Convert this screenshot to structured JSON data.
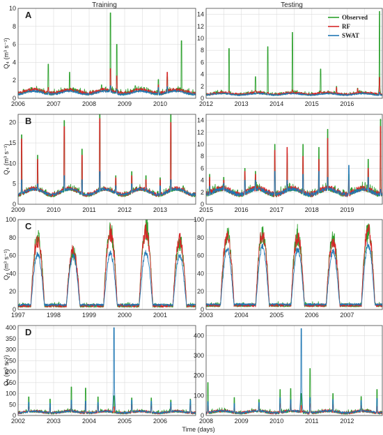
{
  "figure": {
    "column_titles": [
      "Training",
      "Testing"
    ],
    "xlabel": "Time (days)",
    "ylabel": "Q₄ (m³ s⁻¹)",
    "legend": [
      {
        "name": "Observed",
        "color": "#2ca02c"
      },
      {
        "name": "RF",
        "color": "#d62728"
      },
      {
        "name": "SWAT",
        "color": "#1f77b4"
      }
    ]
  },
  "chart_data": [
    {
      "panel": "A",
      "type": "line",
      "column": "Training",
      "x_range": [
        2006,
        2011
      ],
      "ylim": [
        0,
        10
      ],
      "yticks": [
        0,
        2,
        4,
        6,
        8,
        10
      ],
      "xticks": [
        2006,
        2007,
        2008,
        2009,
        2010
      ],
      "baseline": 0.35,
      "swat_base": 0.3,
      "seasonal": 0.4,
      "period": 1,
      "noise": 0.35,
      "seed": 11,
      "peaks": [
        [
          2006.15,
          1.0,
          0.6,
          0.6
        ],
        [
          2006.85,
          3.8,
          1.2,
          0.7
        ],
        [
          2007.45,
          2.9,
          0.9,
          0.6
        ],
        [
          2008.35,
          1.5,
          1.0,
          0.5
        ],
        [
          2008.6,
          9.5,
          3.3,
          1.4
        ],
        [
          2008.78,
          6.0,
          2.5,
          1.0
        ],
        [
          2009.3,
          1.4,
          1.0,
          0.6
        ],
        [
          2009.55,
          1.2,
          0.8,
          0.6
        ],
        [
          2009.95,
          2.1,
          1.5,
          1.2
        ],
        [
          2010.2,
          2.4,
          2.9,
          1.3
        ],
        [
          2010.6,
          6.4,
          1.0,
          0.7
        ]
      ]
    },
    {
      "panel": "A",
      "type": "line",
      "column": "Testing",
      "x_range": [
        2012,
        2017
      ],
      "ylim": [
        0,
        15
      ],
      "yticks": [
        0,
        2,
        4,
        6,
        8,
        10,
        12,
        14
      ],
      "xticks": [
        2012,
        2013,
        2014,
        2015,
        2016
      ],
      "baseline": 0.45,
      "swat_base": 0.4,
      "seasonal": 0.3,
      "period": 1,
      "noise": 0.35,
      "seed": 23,
      "peaks": [
        [
          2012.65,
          8.3,
          1.2,
          0.6
        ],
        [
          2013.4,
          3.6,
          1.3,
          0.6
        ],
        [
          2013.75,
          8.6,
          1.0,
          0.7
        ],
        [
          2014.45,
          11.0,
          1.4,
          0.8
        ],
        [
          2015.25,
          4.9,
          1.2,
          0.6
        ],
        [
          2015.7,
          2.0,
          1.8,
          0.7
        ],
        [
          2016.3,
          1.7,
          1.6,
          0.7
        ],
        [
          2016.92,
          14.5,
          3.5,
          1.0
        ]
      ]
    },
    {
      "panel": "B",
      "type": "line",
      "column": "Training",
      "x_range": [
        2009,
        2014
      ],
      "ylim": [
        0,
        22
      ],
      "yticks": [
        0,
        5,
        10,
        15,
        20
      ],
      "xticks": [
        2009,
        2010,
        2011,
        2012,
        2013
      ],
      "baseline": 1.8,
      "swat_base": 2.0,
      "seasonal": 1.5,
      "period": 1,
      "noise": 0.9,
      "seed": 37,
      "peaks": [
        [
          2009.1,
          17.0,
          16.0,
          6.0
        ],
        [
          2009.55,
          12.0,
          11.0,
          5.0
        ],
        [
          2010.3,
          20.5,
          19.0,
          7.0
        ],
        [
          2010.8,
          13.5,
          12.0,
          6.0
        ],
        [
          2011.3,
          22.0,
          21.0,
          8.0
        ],
        [
          2011.75,
          7.0,
          6.5,
          4.5
        ],
        [
          2012.2,
          8.0,
          7.0,
          5.0
        ],
        [
          2012.6,
          7.0,
          6.0,
          4.0
        ],
        [
          2013.0,
          6.5,
          6.0,
          4.5
        ],
        [
          2013.3,
          22.0,
          20.0,
          6.0
        ],
        [
          2013.65,
          4.5,
          4.0,
          3.5
        ]
      ]
    },
    {
      "panel": "B",
      "type": "line",
      "column": "Testing",
      "x_range": [
        2015,
        2020
      ],
      "ylim": [
        0,
        15
      ],
      "yticks": [
        0,
        2,
        4,
        6,
        8,
        10,
        12,
        14
      ],
      "xticks": [
        2015,
        2016,
        2017,
        2018,
        2019
      ],
      "baseline": 1.2,
      "swat_base": 1.3,
      "seasonal": 1.0,
      "period": 1,
      "noise": 0.8,
      "seed": 51,
      "peaks": [
        [
          2015.1,
          5.0,
          4.5,
          3.0
        ],
        [
          2015.5,
          4.5,
          4.0,
          3.5
        ],
        [
          2016.1,
          6.0,
          5.5,
          4.0
        ],
        [
          2016.4,
          5.5,
          5.0,
          4.0
        ],
        [
          2016.95,
          10.0,
          9.0,
          5.5
        ],
        [
          2017.3,
          8.5,
          9.5,
          4.0
        ],
        [
          2017.75,
          10.0,
          8.0,
          5.0
        ],
        [
          2018.2,
          9.5,
          7.5,
          5.5
        ],
        [
          2018.45,
          12.5,
          11.0,
          4.5
        ],
        [
          2019.05,
          5.0,
          4.0,
          6.5
        ],
        [
          2019.6,
          7.5,
          6.0,
          4.5
        ],
        [
          2019.95,
          14.2,
          13.0,
          2.5
        ]
      ]
    },
    {
      "panel": "C",
      "type": "line",
      "column": "Training",
      "x_range": [
        1997,
        2002
      ],
      "ylim": [
        0,
        100
      ],
      "yticks": [
        0,
        20,
        40,
        60,
        80,
        100
      ],
      "xticks": [
        1997,
        1998,
        1999,
        2000,
        2001
      ],
      "baseline": 2.5,
      "swat_base": 4.0,
      "seasonal": 0,
      "period": 1,
      "noise": 3.0,
      "seed": 67,
      "seasons": [
        [
          1997.55,
          88,
          80,
          60
        ],
        [
          1998.55,
          68,
          68,
          58
        ],
        [
          1999.6,
          95,
          90,
          60
        ],
        [
          2000.6,
          98,
          92,
          62
        ],
        [
          2001.55,
          82,
          80,
          58
        ]
      ],
      "season_width": 0.12
    },
    {
      "panel": "C",
      "type": "line",
      "column": "Testing",
      "x_range": [
        2003,
        2008
      ],
      "ylim": [
        0,
        100
      ],
      "yticks": [
        0,
        20,
        40,
        60,
        80,
        100
      ],
      "xticks": [
        2003,
        2004,
        2005,
        2006,
        2007
      ],
      "baseline": 3.0,
      "swat_base": 4.5,
      "seasonal": 0,
      "period": 1,
      "noise": 3.0,
      "seed": 79,
      "seasons": [
        [
          2003.6,
          88,
          85,
          65
        ],
        [
          2004.6,
          92,
          88,
          68
        ],
        [
          2005.6,
          88,
          85,
          64
        ],
        [
          2006.6,
          85,
          80,
          62
        ],
        [
          2007.6,
          95,
          92,
          70
        ]
      ],
      "season_width": 0.12
    },
    {
      "panel": "D",
      "type": "line",
      "column": "Training",
      "x_range": [
        2002,
        2007
      ],
      "ylim": [
        0,
        410
      ],
      "yticks": [
        0,
        50,
        100,
        150,
        200,
        250,
        300,
        350,
        400
      ],
      "xticks": [
        2002,
        2003,
        2004,
        2005,
        2006
      ],
      "baseline": 6,
      "swat_base": 8,
      "seasonal": 8,
      "period": 1,
      "noise": 10,
      "seed": 83,
      "peaks": [
        [
          2002.3,
          85,
          40,
          60
        ],
        [
          2002.9,
          75,
          35,
          55
        ],
        [
          2003.5,
          130,
          50,
          70
        ],
        [
          2003.9,
          125,
          60,
          65
        ],
        [
          2004.25,
          85,
          45,
          60
        ],
        [
          2004.7,
          90,
          40,
          400
        ],
        [
          2005.2,
          80,
          50,
          70
        ],
        [
          2005.75,
          80,
          45,
          65
        ],
        [
          2006.3,
          70,
          40,
          60
        ],
        [
          2006.85,
          75,
          45,
          70
        ]
      ]
    },
    {
      "panel": "D",
      "type": "line",
      "column": "Testing",
      "x_range": [
        2008,
        2013
      ],
      "ylim": [
        0,
        450
      ],
      "yticks": [
        0,
        100,
        200,
        300,
        400
      ],
      "xticks": [
        2008,
        2009,
        2010,
        2011,
        2012
      ],
      "baseline": 6,
      "swat_base": 9,
      "seasonal": 10,
      "period": 1,
      "noise": 12,
      "seed": 97,
      "peaks": [
        [
          2008.05,
          165,
          50,
          70
        ],
        [
          2008.8,
          90,
          40,
          60
        ],
        [
          2009.5,
          80,
          45,
          65
        ],
        [
          2010.1,
          130,
          60,
          90
        ],
        [
          2010.4,
          135,
          60,
          80
        ],
        [
          2010.7,
          110,
          50,
          435
        ],
        [
          2010.95,
          235,
          60,
          90
        ],
        [
          2011.6,
          110,
          55,
          80
        ],
        [
          2012.4,
          95,
          50,
          75
        ],
        [
          2012.85,
          130,
          45,
          85
        ]
      ]
    }
  ]
}
